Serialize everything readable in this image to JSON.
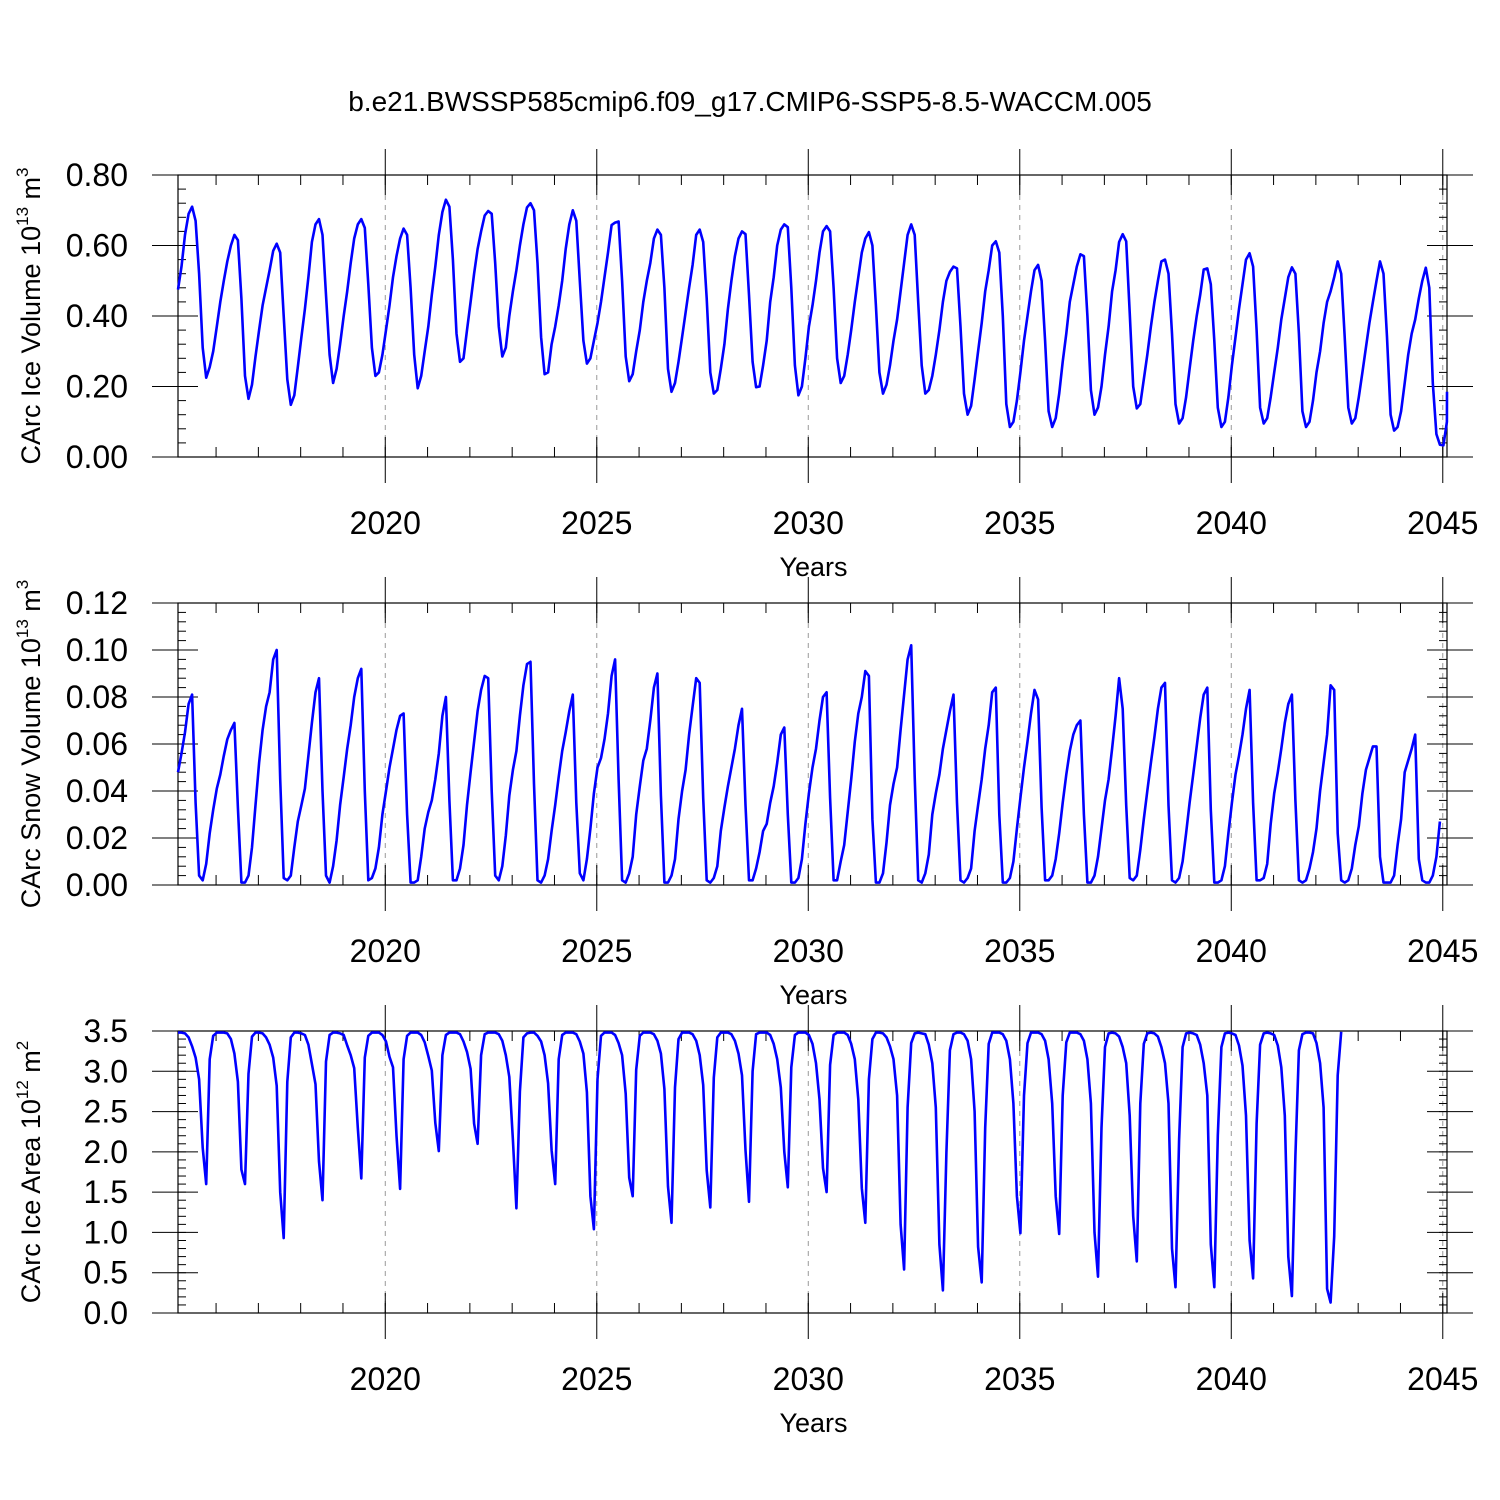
{
  "title": "b.e21.BWSSP585cmip6.f09_g17.CMIP6-SSP5-8.5-WACCM.005",
  "colors": {
    "series": "#0000ff",
    "axis": "#000000",
    "grid": "#999999"
  },
  "chart_data": [
    {
      "type": "line",
      "title": "b.e21.BWSSP585cmip6.f09_g17.CMIP6-SSP5-8.5-WACCM.005",
      "xlabel": "Years",
      "ylabel": "CArc Ice Volume 10",
      "ylabel_exp": "13",
      "ylabel_unit": " m",
      "ylabel_unit_exp": "3",
      "xlim": [
        2015.1,
        2045.1
      ],
      "ylim": [
        0,
        0.8
      ],
      "xticks": [
        2020,
        2025,
        2030,
        2035,
        2040,
        2045
      ],
      "xtick_labels": [
        "2020",
        "2025",
        "2030",
        "2035",
        "2040",
        "2045"
      ],
      "yticks": [
        0,
        0.2,
        0.4,
        0.6,
        0.8
      ],
      "ytick_labels": [
        "0.00",
        "0.20",
        "0.40",
        "0.60",
        "0.80"
      ],
      "grid": "x",
      "x_start": 2015.1,
      "x_step": 0.08333,
      "values": [
        0.475,
        0.54,
        0.63,
        0.69,
        0.71,
        0.67,
        0.52,
        0.31,
        0.225,
        0.255,
        0.3,
        0.37,
        0.44,
        0.5,
        0.555,
        0.6,
        0.63,
        0.615,
        0.45,
        0.23,
        0.165,
        0.205,
        0.285,
        0.36,
        0.43,
        0.48,
        0.53,
        0.585,
        0.605,
        0.58,
        0.4,
        0.22,
        0.148,
        0.175,
        0.255,
        0.34,
        0.42,
        0.51,
        0.61,
        0.66,
        0.675,
        0.63,
        0.46,
        0.29,
        0.21,
        0.25,
        0.32,
        0.4,
        0.47,
        0.55,
        0.62,
        0.66,
        0.675,
        0.65,
        0.49,
        0.31,
        0.23,
        0.24,
        0.29,
        0.36,
        0.43,
        0.51,
        0.57,
        0.62,
        0.648,
        0.63,
        0.48,
        0.29,
        0.195,
        0.23,
        0.3,
        0.37,
        0.46,
        0.54,
        0.63,
        0.695,
        0.73,
        0.71,
        0.56,
        0.35,
        0.27,
        0.28,
        0.36,
        0.44,
        0.52,
        0.59,
        0.64,
        0.685,
        0.698,
        0.69,
        0.55,
        0.37,
        0.285,
        0.31,
        0.4,
        0.47,
        0.53,
        0.6,
        0.66,
        0.708,
        0.72,
        0.7,
        0.55,
        0.34,
        0.235,
        0.24,
        0.32,
        0.37,
        0.43,
        0.5,
        0.59,
        0.66,
        0.7,
        0.67,
        0.5,
        0.33,
        0.265,
        0.28,
        0.33,
        0.38,
        0.44,
        0.51,
        0.58,
        0.658,
        0.665,
        0.668,
        0.5,
        0.285,
        0.215,
        0.235,
        0.3,
        0.36,
        0.44,
        0.5,
        0.55,
        0.62,
        0.645,
        0.63,
        0.48,
        0.25,
        0.185,
        0.21,
        0.27,
        0.34,
        0.41,
        0.48,
        0.545,
        0.63,
        0.645,
        0.61,
        0.45,
        0.24,
        0.18,
        0.19,
        0.25,
        0.32,
        0.42,
        0.5,
        0.57,
        0.62,
        0.64,
        0.632,
        0.46,
        0.27,
        0.198,
        0.2,
        0.26,
        0.33,
        0.44,
        0.51,
        0.6,
        0.645,
        0.66,
        0.652,
        0.48,
        0.26,
        0.175,
        0.2,
        0.28,
        0.37,
        0.43,
        0.5,
        0.58,
        0.64,
        0.655,
        0.64,
        0.48,
        0.28,
        0.21,
        0.23,
        0.29,
        0.36,
        0.44,
        0.51,
        0.58,
        0.62,
        0.638,
        0.6,
        0.43,
        0.24,
        0.18,
        0.205,
        0.26,
        0.33,
        0.39,
        0.47,
        0.55,
        0.63,
        0.66,
        0.63,
        0.44,
        0.26,
        0.18,
        0.19,
        0.23,
        0.29,
        0.36,
        0.44,
        0.5,
        0.525,
        0.54,
        0.535,
        0.37,
        0.18,
        0.12,
        0.145,
        0.22,
        0.3,
        0.38,
        0.47,
        0.53,
        0.6,
        0.612,
        0.58,
        0.4,
        0.15,
        0.085,
        0.1,
        0.16,
        0.24,
        0.33,
        0.4,
        0.47,
        0.53,
        0.545,
        0.5,
        0.33,
        0.13,
        0.085,
        0.11,
        0.18,
        0.27,
        0.35,
        0.44,
        0.49,
        0.54,
        0.575,
        0.57,
        0.4,
        0.19,
        0.12,
        0.14,
        0.2,
        0.29,
        0.37,
        0.47,
        0.53,
        0.61,
        0.632,
        0.612,
        0.41,
        0.2,
        0.138,
        0.15,
        0.22,
        0.29,
        0.37,
        0.44,
        0.5,
        0.555,
        0.56,
        0.52,
        0.35,
        0.15,
        0.095,
        0.11,
        0.17,
        0.25,
        0.33,
        0.4,
        0.46,
        0.532,
        0.535,
        0.49,
        0.33,
        0.14,
        0.085,
        0.1,
        0.17,
        0.26,
        0.34,
        0.42,
        0.49,
        0.56,
        0.578,
        0.54,
        0.36,
        0.14,
        0.095,
        0.11,
        0.17,
        0.24,
        0.31,
        0.39,
        0.45,
        0.51,
        0.538,
        0.52,
        0.35,
        0.13,
        0.085,
        0.1,
        0.16,
        0.24,
        0.3,
        0.38,
        0.44,
        0.47,
        0.51,
        0.555,
        0.52,
        0.34,
        0.14,
        0.095,
        0.11,
        0.17,
        0.24,
        0.31,
        0.38,
        0.44,
        0.5,
        0.555,
        0.52,
        0.34,
        0.12,
        0.075,
        0.085,
        0.13,
        0.21,
        0.29,
        0.35,
        0.39,
        0.45,
        0.5,
        0.537,
        0.48,
        0.21,
        0.065,
        0.035,
        0.033,
        0.1,
        0.185
      ]
    },
    {
      "type": "line",
      "xlabel": "Years",
      "ylabel": "CArc Snow Volume 10",
      "ylabel_exp": "13",
      "ylabel_unit": " m",
      "ylabel_unit_exp": "3",
      "xlim": [
        2015.1,
        2045.1
      ],
      "ylim": [
        0,
        0.12
      ],
      "xticks": [
        2020,
        2025,
        2030,
        2035,
        2040,
        2045
      ],
      "xtick_labels": [
        "2020",
        "2025",
        "2030",
        "2035",
        "2040",
        "2045"
      ],
      "yticks": [
        0,
        0.02,
        0.04,
        0.06,
        0.08,
        0.1,
        0.12
      ],
      "ytick_labels": [
        "0.00",
        "0.02",
        "0.04",
        "0.06",
        "0.08",
        "0.10",
        "0.12"
      ],
      "grid": "x",
      "x_start": 2015.1,
      "x_step": 0.08333,
      "values": [
        0.048,
        0.056,
        0.065,
        0.077,
        0.081,
        0.035,
        0.004,
        0.002,
        0.009,
        0.022,
        0.032,
        0.041,
        0.047,
        0.055,
        0.062,
        0.066,
        0.069,
        0.033,
        0.001,
        0.001,
        0.004,
        0.016,
        0.034,
        0.052,
        0.066,
        0.076,
        0.082,
        0.096,
        0.1,
        0.045,
        0.003,
        0.002,
        0.004,
        0.016,
        0.027,
        0.034,
        0.041,
        0.055,
        0.069,
        0.082,
        0.088,
        0.04,
        0.004,
        0.001,
        0.008,
        0.019,
        0.034,
        0.046,
        0.058,
        0.068,
        0.08,
        0.088,
        0.092,
        0.04,
        0.002,
        0.003,
        0.007,
        0.016,
        0.03,
        0.04,
        0.05,
        0.058,
        0.066,
        0.072,
        0.073,
        0.03,
        0.001,
        0.001,
        0.002,
        0.012,
        0.024,
        0.031,
        0.036,
        0.045,
        0.056,
        0.072,
        0.08,
        0.036,
        0.002,
        0.002,
        0.007,
        0.017,
        0.034,
        0.048,
        0.061,
        0.074,
        0.083,
        0.089,
        0.088,
        0.04,
        0.004,
        0.002,
        0.008,
        0.021,
        0.038,
        0.049,
        0.057,
        0.072,
        0.085,
        0.094,
        0.095,
        0.043,
        0.002,
        0.001,
        0.004,
        0.011,
        0.023,
        0.034,
        0.046,
        0.057,
        0.065,
        0.074,
        0.081,
        0.035,
        0.005,
        0.002,
        0.011,
        0.024,
        0.039,
        0.05,
        0.054,
        0.062,
        0.073,
        0.089,
        0.096,
        0.045,
        0.002,
        0.001,
        0.005,
        0.012,
        0.03,
        0.042,
        0.053,
        0.058,
        0.07,
        0.084,
        0.09,
        0.038,
        0.001,
        0.001,
        0.004,
        0.011,
        0.028,
        0.04,
        0.049,
        0.064,
        0.076,
        0.088,
        0.086,
        0.037,
        0.002,
        0.001,
        0.003,
        0.008,
        0.023,
        0.033,
        0.042,
        0.05,
        0.058,
        0.068,
        0.075,
        0.034,
        0.002,
        0.002,
        0.007,
        0.014,
        0.023,
        0.026,
        0.035,
        0.042,
        0.052,
        0.064,
        0.067,
        0.03,
        0.001,
        0.001,
        0.003,
        0.011,
        0.026,
        0.039,
        0.05,
        0.058,
        0.07,
        0.08,
        0.082,
        0.037,
        0.002,
        0.002,
        0.01,
        0.017,
        0.031,
        0.045,
        0.061,
        0.073,
        0.08,
        0.091,
        0.089,
        0.028,
        0.001,
        0.001,
        0.005,
        0.018,
        0.034,
        0.043,
        0.05,
        0.066,
        0.081,
        0.096,
        0.102,
        0.046,
        0.002,
        0.001,
        0.005,
        0.013,
        0.03,
        0.039,
        0.047,
        0.058,
        0.066,
        0.074,
        0.081,
        0.035,
        0.002,
        0.001,
        0.003,
        0.007,
        0.023,
        0.034,
        0.045,
        0.058,
        0.068,
        0.082,
        0.084,
        0.03,
        0.001,
        0.001,
        0.003,
        0.01,
        0.024,
        0.037,
        0.05,
        0.061,
        0.073,
        0.083,
        0.079,
        0.033,
        0.002,
        0.002,
        0.004,
        0.011,
        0.022,
        0.035,
        0.047,
        0.057,
        0.064,
        0.068,
        0.07,
        0.03,
        0.001,
        0.001,
        0.004,
        0.012,
        0.024,
        0.036,
        0.045,
        0.058,
        0.072,
        0.088,
        0.075,
        0.034,
        0.003,
        0.002,
        0.004,
        0.015,
        0.028,
        0.04,
        0.052,
        0.063,
        0.075,
        0.084,
        0.086,
        0.034,
        0.002,
        0.001,
        0.003,
        0.01,
        0.022,
        0.035,
        0.047,
        0.059,
        0.071,
        0.081,
        0.084,
        0.032,
        0.001,
        0.001,
        0.002,
        0.008,
        0.022,
        0.035,
        0.047,
        0.055,
        0.064,
        0.075,
        0.083,
        0.035,
        0.002,
        0.002,
        0.003,
        0.009,
        0.026,
        0.039,
        0.048,
        0.058,
        0.069,
        0.077,
        0.081,
        0.036,
        0.002,
        0.001,
        0.002,
        0.007,
        0.014,
        0.024,
        0.04,
        0.052,
        0.064,
        0.085,
        0.083,
        0.022,
        0.002,
        0.001,
        0.002,
        0.007,
        0.017,
        0.025,
        0.039,
        0.049,
        0.054,
        0.059,
        0.059,
        0.012,
        0.001,
        0.001,
        0.001,
        0.004,
        0.017,
        0.028,
        0.048,
        0.053,
        0.058,
        0.064,
        0.011,
        0.002,
        0.001,
        0.001,
        0.004,
        0.012,
        0.027
      ]
    },
    {
      "type": "line",
      "xlabel": "Years",
      "ylabel": "CArc Ice Area 10",
      "ylabel_exp": "12",
      "ylabel_unit": " m",
      "ylabel_unit_exp": "2",
      "xlim": [
        2015.1,
        2045.1
      ],
      "ylim": [
        0,
        3.5
      ],
      "xticks": [
        2020,
        2025,
        2030,
        2035,
        2040,
        2045
      ],
      "xtick_labels": [
        "2020",
        "2025",
        "2030",
        "2035",
        "2040",
        "2045"
      ],
      "yticks": [
        0,
        0.5,
        1,
        1.5,
        2,
        2.5,
        3,
        3.5
      ],
      "ytick_labels": [
        "0.0",
        "0.5",
        "1.0",
        "1.5",
        "2.0",
        "2.5",
        "3.0",
        "3.5"
      ],
      "grid": "x",
      "x_start": 2015.1,
      "x_step": 0.08333,
      "values": [
        3.48,
        3.48,
        3.47,
        3.42,
        3.31,
        3.17,
        2.9,
        2.05,
        1.6,
        3.15,
        3.44,
        3.48,
        3.48,
        3.48,
        3.47,
        3.4,
        3.22,
        2.87,
        1.78,
        1.6,
        2.97,
        3.43,
        3.48,
        3.48,
        3.47,
        3.42,
        3.33,
        3.17,
        2.82,
        1.5,
        0.93,
        2.87,
        3.42,
        3.48,
        3.48,
        3.47,
        3.45,
        3.33,
        3.09,
        2.84,
        1.88,
        1.4,
        3.12,
        3.45,
        3.48,
        3.48,
        3.47,
        3.45,
        3.32,
        3.2,
        3.04,
        2.3,
        1.67,
        3.17,
        3.44,
        3.48,
        3.48,
        3.48,
        3.45,
        3.37,
        3.18,
        3.05,
        2.2,
        1.54,
        3.15,
        3.44,
        3.48,
        3.48,
        3.48,
        3.45,
        3.36,
        3.19,
        3.01,
        2.36,
        2.01,
        3.2,
        3.45,
        3.48,
        3.48,
        3.48,
        3.46,
        3.37,
        3.24,
        3.03,
        2.35,
        2.1,
        3.2,
        3.46,
        3.48,
        3.48,
        3.48,
        3.46,
        3.38,
        3.2,
        2.93,
        2.15,
        1.3,
        2.75,
        3.42,
        3.47,
        3.48,
        3.48,
        3.44,
        3.37,
        3.2,
        2.85,
        2.02,
        1.6,
        3.15,
        3.45,
        3.48,
        3.48,
        3.48,
        3.46,
        3.37,
        3.22,
        2.74,
        1.45,
        1.04,
        2.9,
        3.44,
        3.48,
        3.48,
        3.48,
        3.45,
        3.35,
        3.2,
        2.72,
        1.68,
        1.45,
        3.02,
        3.44,
        3.48,
        3.48,
        3.48,
        3.46,
        3.38,
        3.22,
        2.78,
        1.57,
        1.12,
        2.8,
        3.4,
        3.48,
        3.48,
        3.48,
        3.46,
        3.38,
        3.2,
        2.83,
        1.77,
        1.31,
        2.92,
        3.42,
        3.48,
        3.48,
        3.48,
        3.46,
        3.38,
        3.22,
        2.95,
        2.02,
        1.38,
        3.0,
        3.46,
        3.48,
        3.48,
        3.48,
        3.45,
        3.34,
        3.15,
        2.8,
        2.0,
        1.56,
        3.05,
        3.45,
        3.48,
        3.48,
        3.48,
        3.45,
        3.34,
        3.1,
        2.65,
        1.8,
        1.5,
        3.08,
        3.45,
        3.48,
        3.48,
        3.48,
        3.45,
        3.34,
        3.15,
        2.65,
        1.55,
        1.12,
        2.9,
        3.4,
        3.48,
        3.48,
        3.47,
        3.42,
        3.31,
        3.15,
        2.7,
        1.1,
        0.54,
        2.55,
        3.35,
        3.47,
        3.48,
        3.47,
        3.46,
        3.33,
        3.1,
        2.55,
        0.85,
        0.28,
        1.99,
        3.26,
        3.46,
        3.48,
        3.48,
        3.46,
        3.38,
        3.15,
        2.5,
        0.82,
        0.38,
        2.3,
        3.34,
        3.48,
        3.48,
        3.48,
        3.46,
        3.38,
        3.15,
        2.6,
        1.45,
        0.99,
        2.7,
        3.35,
        3.48,
        3.48,
        3.48,
        3.46,
        3.38,
        3.15,
        2.6,
        1.45,
        0.98,
        2.7,
        3.36,
        3.48,
        3.48,
        3.48,
        3.46,
        3.38,
        3.15,
        2.6,
        1.0,
        0.45,
        2.3,
        3.3,
        3.47,
        3.48,
        3.47,
        3.43,
        3.3,
        3.1,
        2.45,
        1.2,
        0.64,
        2.6,
        3.34,
        3.47,
        3.48,
        3.47,
        3.43,
        3.3,
        3.1,
        2.6,
        0.8,
        0.32,
        2.15,
        3.3,
        3.47,
        3.48,
        3.47,
        3.45,
        3.33,
        3.1,
        2.7,
        0.85,
        0.32,
        2.2,
        3.3,
        3.47,
        3.48,
        3.47,
        3.45,
        3.32,
        3.07,
        2.45,
        0.9,
        0.43,
        2.35,
        3.33,
        3.47,
        3.48,
        3.47,
        3.45,
        3.32,
        3.05,
        2.45,
        0.7,
        0.21,
        1.95,
        3.26,
        3.46,
        3.48,
        3.48,
        3.47,
        3.35,
        3.1,
        2.55,
        0.3,
        0.13,
        0.95,
        2.95,
        3.49
      ]
    }
  ]
}
